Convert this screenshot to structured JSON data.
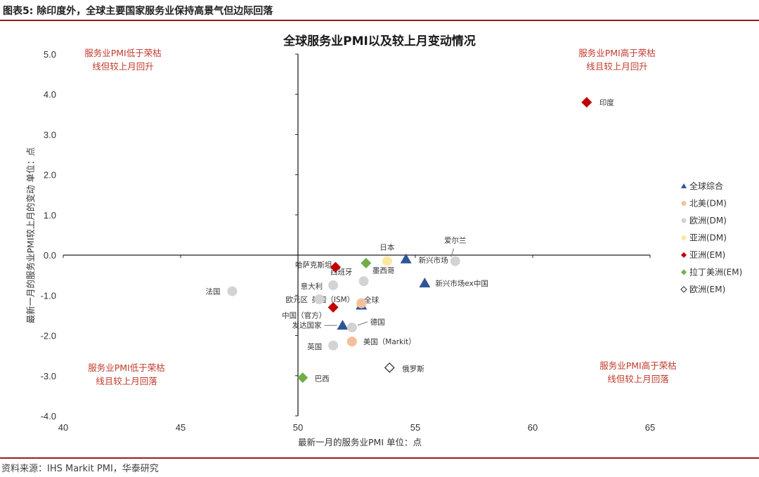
{
  "figure": {
    "title": "图表5:  除印度外，全球主要国家服务业保持高景气但边际回落",
    "source": "资料来源：IHS Markit PMI，华泰研究"
  },
  "chart_data": {
    "type": "scatter",
    "title": "全球服务业PMI以及较上月变动情况",
    "xlabel": "最新一月的服务业PMI    单位：点",
    "ylabel": "最新一月的服务业PMI较上月的变动    单位：点",
    "xlim": [
      40,
      65
    ],
    "ylim": [
      -4.0,
      5.0
    ],
    "xticks": [
      "40",
      "45",
      "50",
      "55",
      "60",
      "65"
    ],
    "yticks": [
      "5.0",
      "4.0",
      "3.0",
      "2.0",
      "1.0",
      "0.0",
      "-1.0",
      "-2.0",
      "-3.0",
      "-4.0"
    ],
    "x_ref": 50,
    "y_ref": 0,
    "quadrants": {
      "top_left": [
        "服务业PMI低于荣枯",
        "线但较上月回升"
      ],
      "top_right": [
        "服务业PMI高于荣枯",
        "线且较上月回升"
      ],
      "bottom_left": [
        "服务业PMI低于荣枯",
        "线且较上月回落"
      ],
      "bottom_right": [
        "服务业PMI高于荣枯",
        "线但较上月回落"
      ]
    },
    "series": [
      {
        "name": "全球综合",
        "marker": "triangle",
        "color": "#2e5597",
        "points": [
          {
            "label": "新兴市场",
            "x": 54.6,
            "y": -0.1
          },
          {
            "label": "新兴市场ex中国",
            "x": 55.4,
            "y": -0.7
          },
          {
            "label": "全球",
            "x": 52.7,
            "y": -1.25
          },
          {
            "label": "发达国家",
            "x": 51.9,
            "y": -1.75
          }
        ]
      },
      {
        "name": "北美(DM)",
        "marker": "circle",
        "color": "#f4c09a",
        "points": [
          {
            "label": "美国（ISM）",
            "x": 52.7,
            "y": -1.2
          },
          {
            "label": "美国（Markit）",
            "x": 52.3,
            "y": -2.15
          }
        ]
      },
      {
        "name": "欧洲(DM)",
        "marker": "circle",
        "color": "#d3d3d3",
        "points": [
          {
            "label": "爱尔兰",
            "x": 56.7,
            "y": -0.15
          },
          {
            "label": "西班牙",
            "x": 52.8,
            "y": -0.65
          },
          {
            "label": "意大利",
            "x": 51.5,
            "y": -0.75
          },
          {
            "label": "法国",
            "x": 47.2,
            "y": -0.9
          },
          {
            "label": "欧元区",
            "x": 50.9,
            "y": -1.1
          },
          {
            "label": "德国",
            "x": 52.3,
            "y": -1.8
          },
          {
            "label": "英国",
            "x": 51.5,
            "y": -2.25
          }
        ]
      },
      {
        "name": "亚洲(DM)",
        "marker": "circle",
        "color": "#fde7a0",
        "points": [
          {
            "label": "日本",
            "x": 53.8,
            "y": -0.15
          }
        ]
      },
      {
        "name": "亚洲(EM)",
        "marker": "diamond",
        "color": "#c00000",
        "points": [
          {
            "label": "印度",
            "x": 62.3,
            "y": 3.8
          },
          {
            "label": "哈萨克斯坦",
            "x": 51.6,
            "y": -0.3
          },
          {
            "label": "中国（官方）",
            "x": 51.5,
            "y": -1.3
          }
        ]
      },
      {
        "name": "拉丁美洲(EM)",
        "marker": "diamond",
        "color": "#70ad47",
        "points": [
          {
            "label": "墨西哥",
            "x": 52.9,
            "y": -0.2
          },
          {
            "label": "巴西",
            "x": 50.2,
            "y": -3.05
          }
        ]
      },
      {
        "name": "欧洲(EM)",
        "marker": "diamond-open",
        "color": "#333333",
        "points": [
          {
            "label": "俄罗斯",
            "x": 53.9,
            "y": -2.8
          }
        ]
      }
    ],
    "legend_position": "right"
  }
}
